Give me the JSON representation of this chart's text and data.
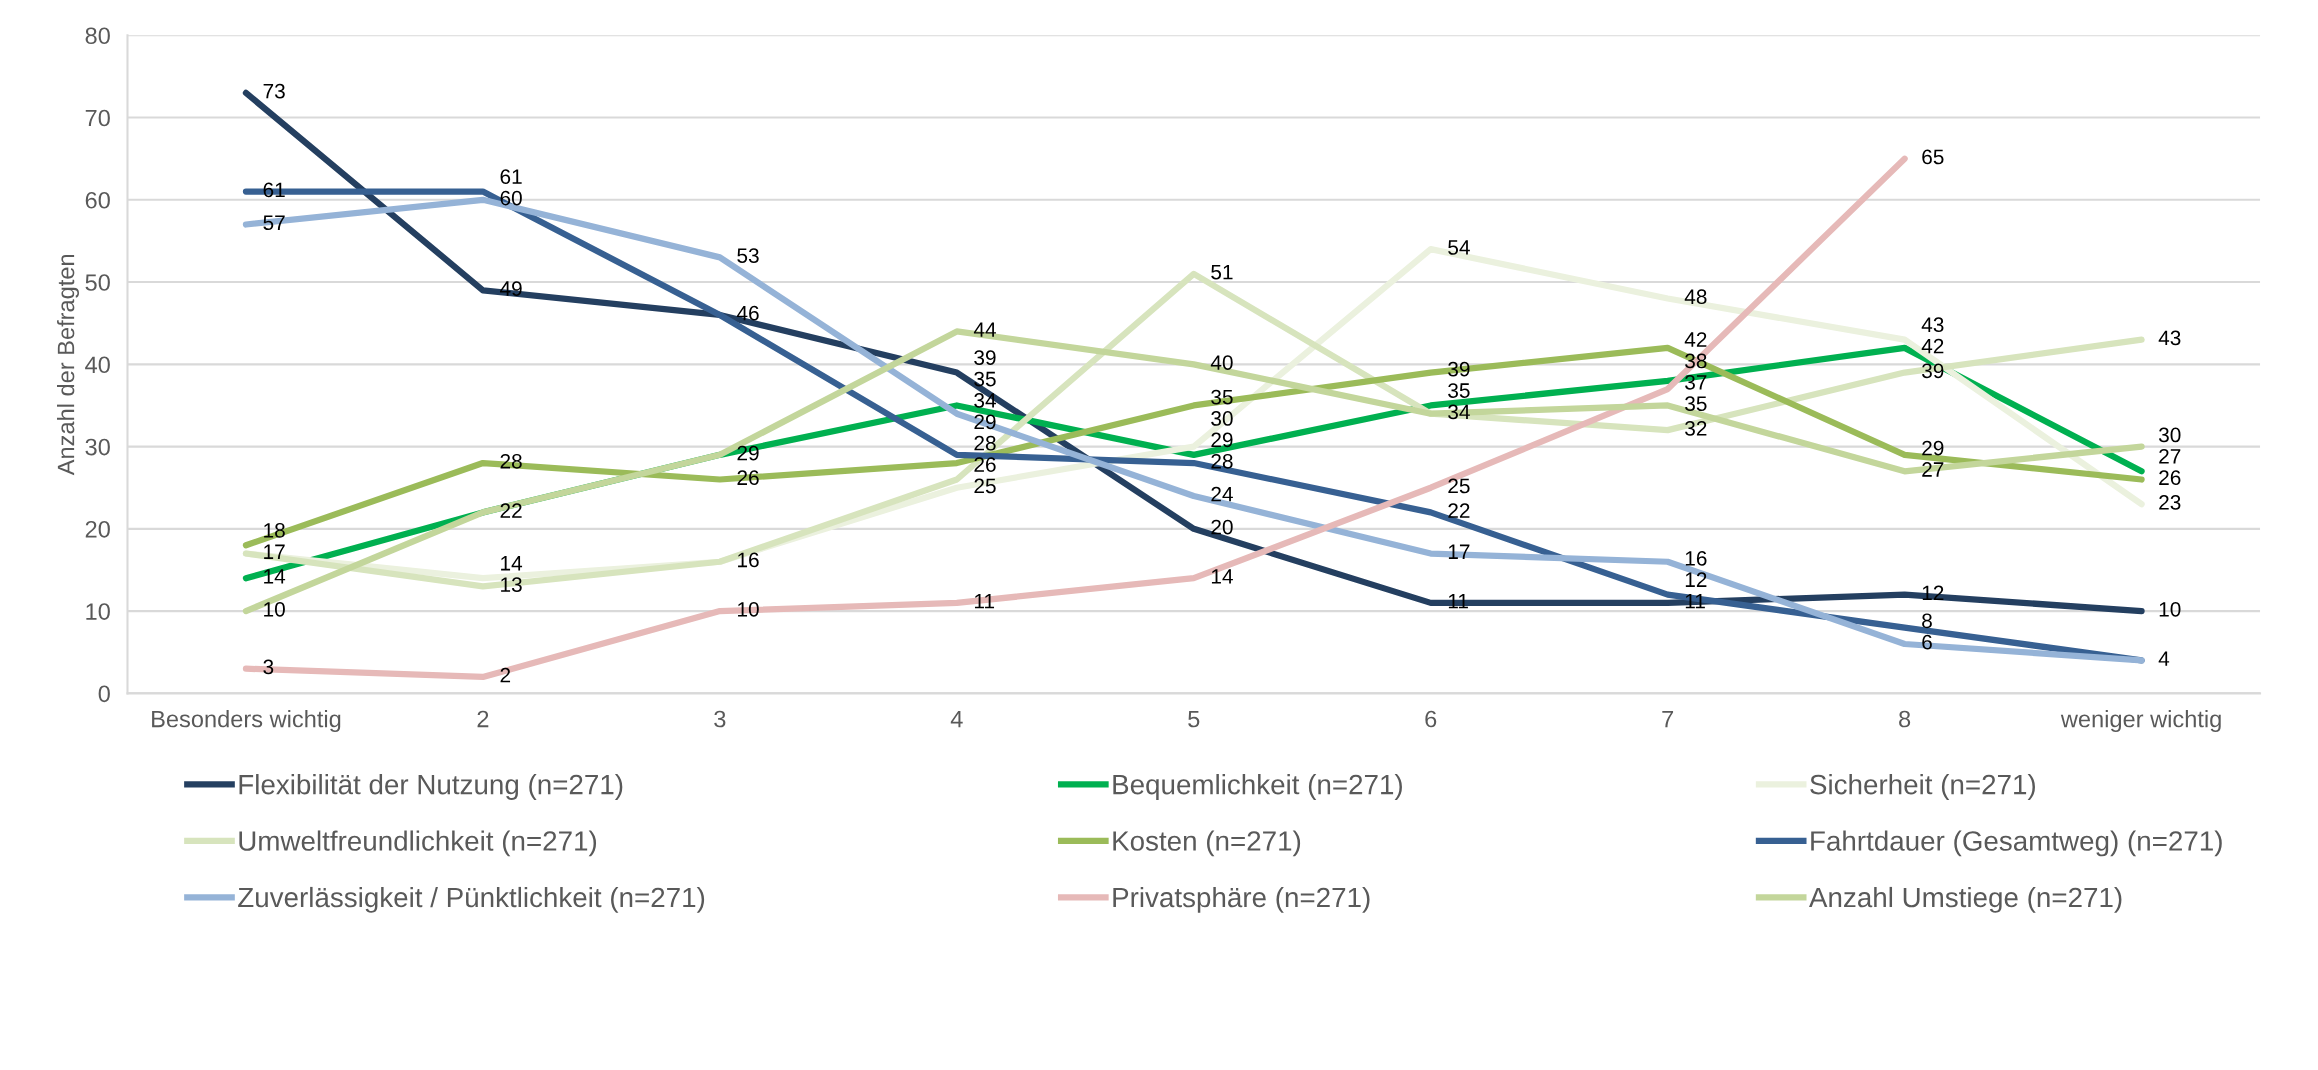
{
  "chart_data": {
    "type": "line",
    "ylabel": "Anzahl der Befragten",
    "categories": [
      "Besonders wichtig",
      "2",
      "3",
      "4",
      "5",
      "6",
      "7",
      "8",
      "weniger wichtig"
    ],
    "ylim": [
      0,
      80
    ],
    "yticks": [
      0,
      10,
      20,
      30,
      40,
      50,
      60,
      70,
      80
    ],
    "grid": "y",
    "legend": "bottom",
    "marker": "none",
    "line_style": "solid",
    "series": [
      {
        "name": "Flexibilität der Nutzung (n=271)",
        "color": "#243f60",
        "values": [
          73,
          49,
          46,
          39,
          20,
          11,
          11,
          12,
          10
        ],
        "value_labels": [
          "73",
          "49",
          "46",
          "39",
          "20",
          "11",
          "11",
          "12",
          "10"
        ]
      },
      {
        "name": "Bequemlichkeit (n=271)",
        "color": "#00b050",
        "values": [
          14,
          22,
          29,
          35,
          29,
          35,
          38,
          42,
          27
        ],
        "value_labels": [
          "14",
          "22",
          "29",
          "35",
          "29",
          "35",
          "38",
          "42",
          "27"
        ]
      },
      {
        "name": "Sicherheit (n=271)",
        "color": "#ebf1de",
        "values": [
          17,
          14,
          16,
          25,
          30,
          54,
          48,
          43,
          23
        ],
        "value_labels": [
          "17",
          "14",
          "16",
          "25",
          "30",
          "54",
          "48",
          "43",
          "23"
        ]
      },
      {
        "name": "Umweltfreundlichkeit (n=271)",
        "color": "#d7e4bd",
        "values": [
          17,
          13,
          16,
          26,
          51,
          34,
          32,
          39,
          43
        ],
        "value_labels": [
          null,
          "13",
          null,
          "26",
          "51",
          "34",
          "32",
          "39",
          "43"
        ]
      },
      {
        "name": "Kosten (n=271)",
        "color": "#9bbb59",
        "values": [
          18,
          28,
          26,
          28,
          35,
          39,
          42,
          29,
          26
        ],
        "value_labels": [
          "18",
          "28",
          "26",
          "28",
          "35",
          "39",
          "42",
          "29",
          "26"
        ]
      },
      {
        "name": "Fahrtdauer (Gesamtweg) (n=271)",
        "color": "#376092",
        "values": [
          61,
          61,
          46,
          29,
          28,
          22,
          12,
          8,
          4
        ],
        "value_labels": [
          "61",
          "61",
          null,
          "29",
          "28",
          "22",
          "12",
          "8",
          "4"
        ]
      },
      {
        "name": "Zuverlässigkeit / Pünktlichkeit (n=271)",
        "color": "#95b3d7",
        "values": [
          57,
          60,
          53,
          34,
          24,
          17,
          16,
          6,
          4
        ],
        "value_labels": [
          "57",
          "60",
          "53",
          "34",
          "24",
          "17",
          "16",
          "6",
          null
        ]
      },
      {
        "name": "Privatsphäre (n=271)",
        "color": "#e6b9b8",
        "values": [
          3,
          2,
          10,
          11,
          14,
          25,
          37,
          65,
          null
        ],
        "value_labels": [
          "3",
          "2",
          "10",
          "11",
          "14",
          "25",
          "37",
          "65",
          null
        ]
      },
      {
        "name": "Anzahl Umstiege (n=271)",
        "color": "#c3d69b",
        "values": [
          10,
          22,
          29,
          44,
          40,
          34,
          35,
          27,
          30
        ],
        "value_labels": [
          "10",
          null,
          null,
          "44",
          "40",
          null,
          "35",
          "27",
          "30"
        ]
      }
    ]
  }
}
